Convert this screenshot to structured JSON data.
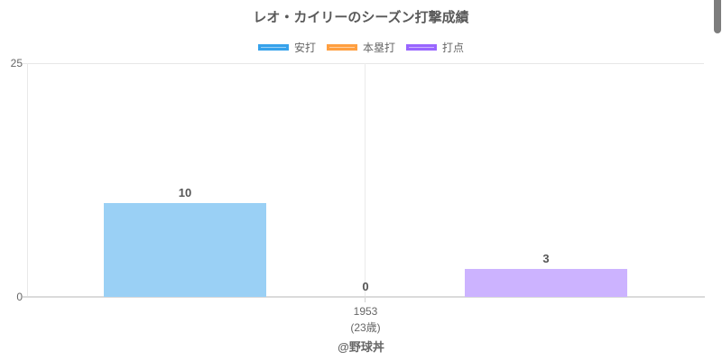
{
  "chart_data": {
    "type": "bar",
    "title": "レオ・カイリーのシーズン打撃成績",
    "categories": [
      "1953"
    ],
    "category_sublabels": [
      "(23歳)"
    ],
    "series": [
      {
        "key": "hits",
        "name": "安打",
        "values": [
          10
        ],
        "fill_color": "#9AD0F5",
        "border_color": "#36A2EB"
      },
      {
        "key": "home-runs",
        "name": "本塁打",
        "values": [
          0
        ],
        "fill_color": "#FFCFA0",
        "border_color": "#FF9F40"
      },
      {
        "key": "rbi",
        "name": "打点",
        "values": [
          3
        ],
        "fill_color": "#CCB3FF",
        "border_color": "#9966FF"
      }
    ],
    "ylim": [
      0,
      25
    ],
    "yticks": [
      0,
      25
    ],
    "grid": true,
    "legend_position": "top",
    "value_labels_shown": true
  },
  "axes": {
    "y_top_label": "25",
    "y_bottom_label": "0",
    "x_label_year": "1953",
    "x_label_age": "(23歳)"
  },
  "footer": {
    "credit": "@野球丼"
  }
}
